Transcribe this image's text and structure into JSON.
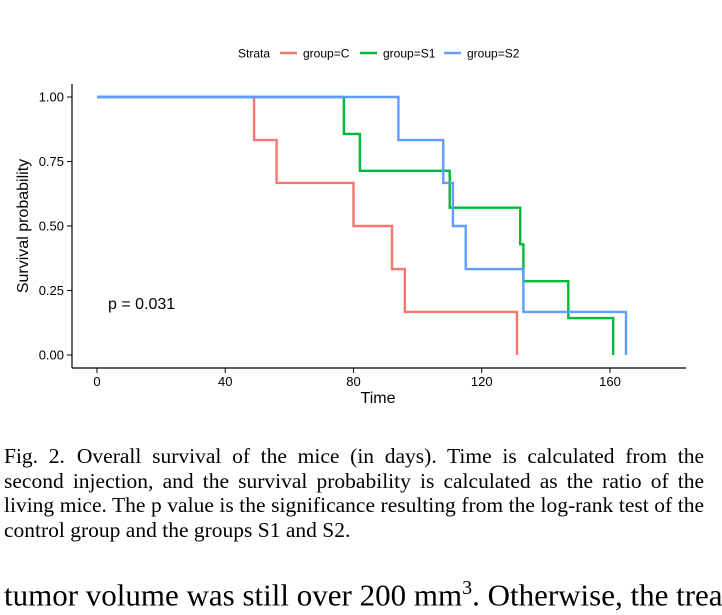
{
  "chart_data": {
    "type": "line",
    "step": true,
    "title": "",
    "xlabel": "Time",
    "ylabel": "Survival probability",
    "xlim": [
      -8,
      185
    ],
    "ylim": [
      -0.03,
      1.05
    ],
    "x_ticks": [
      0,
      40,
      80,
      120,
      160
    ],
    "x_tick_labels": [
      "0",
      "40",
      "80",
      "120",
      "160"
    ],
    "y_ticks": [
      0,
      0.25,
      0.5,
      0.75,
      1.0
    ],
    "y_tick_labels": [
      "0.00",
      "0.25",
      "0.50",
      "0.75",
      "1.00"
    ],
    "legend": {
      "title": "Strata",
      "placement": "top"
    },
    "annotation": "p = 0.031",
    "grid": false,
    "series": [
      {
        "name": "group=C",
        "color": "#F8766D",
        "points": [
          [
            0,
            1.0
          ],
          [
            49,
            1.0
          ],
          [
            49,
            0.833
          ],
          [
            56,
            0.833
          ],
          [
            56,
            0.667
          ],
          [
            80,
            0.667
          ],
          [
            80,
            0.5
          ],
          [
            92,
            0.5
          ],
          [
            92,
            0.333
          ],
          [
            96,
            0.333
          ],
          [
            96,
            0.167
          ],
          [
            131,
            0.167
          ],
          [
            131,
            0.0
          ]
        ]
      },
      {
        "name": "group=S1",
        "color": "#00BA38",
        "points": [
          [
            0,
            1.0
          ],
          [
            77,
            1.0
          ],
          [
            77,
            0.857
          ],
          [
            82,
            0.857
          ],
          [
            82,
            0.714
          ],
          [
            110,
            0.714
          ],
          [
            110,
            0.571
          ],
          [
            132,
            0.571
          ],
          [
            132,
            0.429
          ],
          [
            133,
            0.429
          ],
          [
            133,
            0.286
          ],
          [
            147,
            0.286
          ],
          [
            147,
            0.143
          ],
          [
            161,
            0.143
          ],
          [
            161,
            0.0
          ]
        ]
      },
      {
        "name": "group=S2",
        "color": "#619CFF",
        "points": [
          [
            0,
            1.0
          ],
          [
            94,
            1.0
          ],
          [
            94,
            0.833
          ],
          [
            108,
            0.833
          ],
          [
            108,
            0.667
          ],
          [
            111,
            0.667
          ],
          [
            111,
            0.5
          ],
          [
            115,
            0.5
          ],
          [
            115,
            0.333
          ],
          [
            133,
            0.333
          ],
          [
            133,
            0.167
          ],
          [
            165,
            0.167
          ],
          [
            165,
            0.0
          ]
        ]
      }
    ]
  },
  "caption": {
    "label": "Fig. 2.",
    "text": "Overall survival of the mice (in days). Time is calculated from the second injection, and the survival probability is calculated as the ratio of the living mice. The p value is the significance resulting from the log-rank test of the control group and the groups S1 and S2."
  },
  "body": {
    "before": "tumor volume was still over 200 mm",
    "superscript": "3",
    "after": ". Otherwise, the treat-"
  }
}
